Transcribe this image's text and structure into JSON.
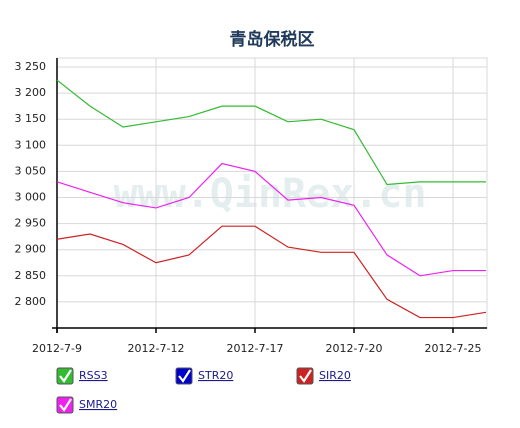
{
  "chart_data": {
    "type": "line",
    "title": "青岛保税区",
    "watermark": "www.QinRex.cn",
    "categories": [
      "2012-7-9",
      null,
      null,
      "2012-7-12",
      null,
      null,
      "2012-7-17",
      null,
      null,
      "2012-7-20",
      null,
      null,
      "2012-7-25",
      null
    ],
    "series": [
      {
        "name": "RSS3",
        "color": "#33bb33",
        "values": [
          3225,
          3175,
          3135,
          3145,
          3155,
          3175,
          3175,
          3145,
          3150,
          3130,
          3025,
          3030,
          3030,
          3030
        ]
      },
      {
        "name": "STR20",
        "color": "#0000cc",
        "values": [
          null,
          null,
          null,
          null,
          null,
          null,
          null,
          null,
          null,
          null,
          null,
          null,
          null,
          null
        ]
      },
      {
        "name": "SIR20",
        "color": "#cc2222",
        "values": [
          2920,
          2930,
          2910,
          2875,
          2890,
          2945,
          2945,
          2905,
          2895,
          2895,
          2805,
          2770,
          2770,
          2780
        ]
      },
      {
        "name": "SMR20",
        "color": "#ee22ee",
        "values": [
          3030,
          3010,
          2990,
          2980,
          3000,
          3065,
          3050,
          2995,
          3000,
          2985,
          2890,
          2850,
          2860,
          2860
        ]
      }
    ],
    "ylim": [
      2750,
      3250
    ],
    "yticks": [
      {
        "value": 2800,
        "label": "2 800"
      },
      {
        "value": 2850,
        "label": "2 850"
      },
      {
        "value": 2900,
        "label": "2 900"
      },
      {
        "value": 2950,
        "label": "2 950"
      },
      {
        "value": 3000,
        "label": "3 000"
      },
      {
        "value": 3050,
        "label": "3 050"
      },
      {
        "value": 3100,
        "label": "3 100"
      },
      {
        "value": 3150,
        "label": "3 150"
      },
      {
        "value": 3200,
        "label": "3 200"
      },
      {
        "value": 3250,
        "label": "3 250"
      }
    ],
    "grid": true
  }
}
